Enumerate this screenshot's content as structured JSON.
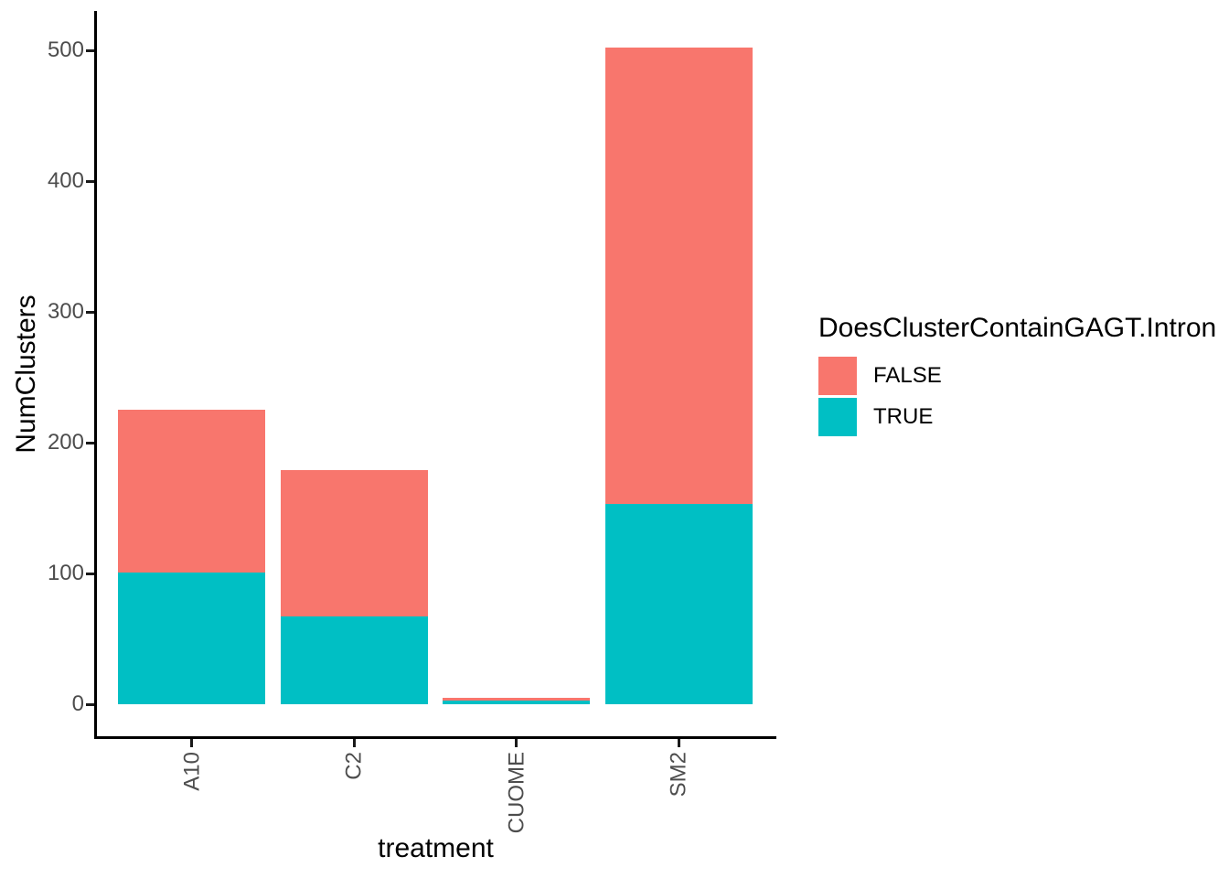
{
  "chart_data": {
    "type": "bar",
    "stacked": true,
    "xlabel": "treatment",
    "ylabel": "NumClusters",
    "categories": [
      "A10",
      "C2",
      "CUOME",
      "SM2"
    ],
    "series": [
      {
        "name": "TRUE",
        "color": "#00BFC4",
        "values": [
          101,
          67,
          3,
          153
        ]
      },
      {
        "name": "FALSE",
        "color": "#F8766D",
        "values": [
          124,
          112,
          2,
          349
        ]
      }
    ],
    "stack_order_bottom_to_top": [
      "TRUE",
      "FALSE"
    ],
    "totals": [
      225,
      179,
      5,
      502
    ],
    "ylim": [
      0,
      500
    ],
    "y_ticks": [
      0,
      100,
      200,
      300,
      400,
      500
    ],
    "grid": "none",
    "background": "#ffffff",
    "x_tick_label_rotation_deg": 90,
    "legend": {
      "title": "DoesClusterContainGAGT.Intron",
      "position": "right",
      "items": [
        {
          "label": "FALSE",
          "color": "#F8766D"
        },
        {
          "label": "TRUE",
          "color": "#00BFC4"
        }
      ]
    },
    "colors": {
      "axis_line": "#000000",
      "tick_mark": "#1a1a1a",
      "axis_text": "#4d4d4d",
      "axis_title": "#000000"
    }
  }
}
